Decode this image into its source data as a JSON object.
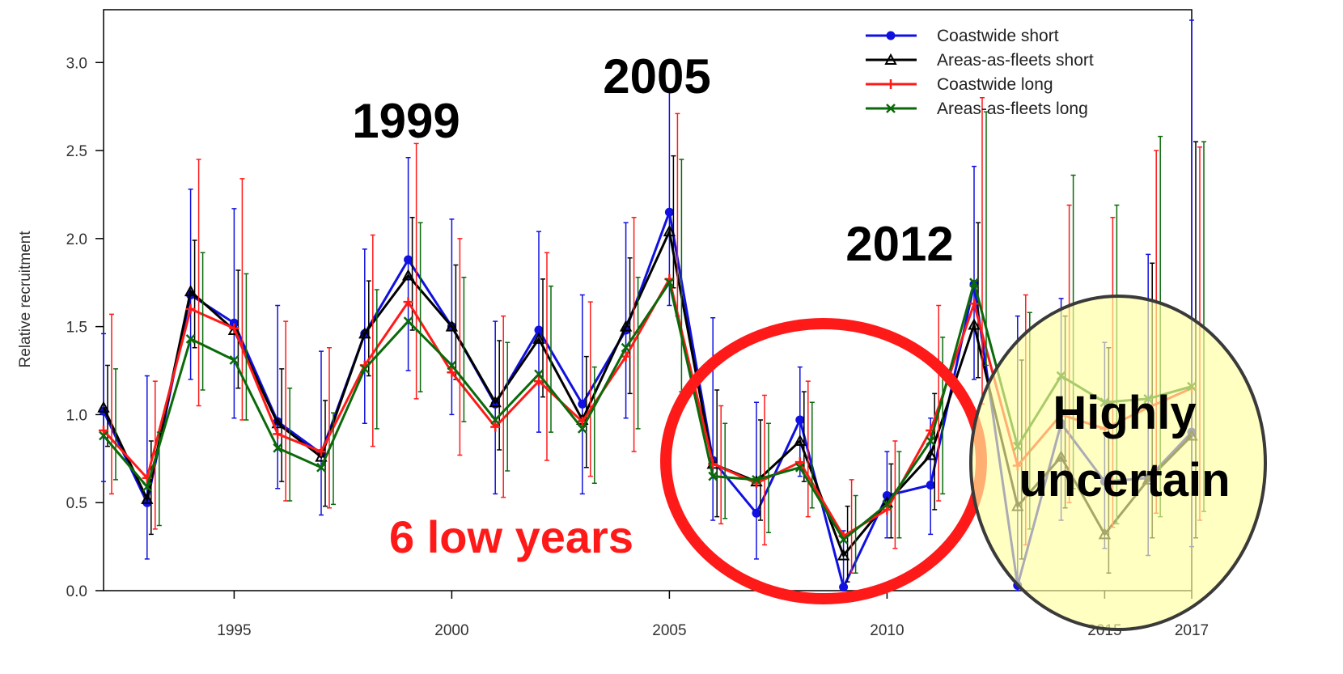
{
  "chart_data": {
    "type": "line",
    "title": "",
    "xlabel": "",
    "ylabel": "Relative recruitment",
    "xlim": [
      1992,
      2017
    ],
    "ylim": [
      0,
      3.3
    ],
    "x_ticks": [
      1995,
      2000,
      2005,
      2010,
      2015,
      2017
    ],
    "y_ticks": [
      "0.0",
      "0.5",
      "1.0",
      "1.5",
      "2.0",
      "2.5",
      "3.0"
    ],
    "y_tick_values": [
      0,
      0.5,
      1.0,
      1.5,
      2.0,
      2.5,
      3.0
    ],
    "legend_position": "top-right",
    "colors": {
      "blue": "#1010e0",
      "black": "#000000",
      "red": "#ff1a1a",
      "green": "#0a6a0a"
    },
    "x": [
      1992,
      1993,
      1994,
      1995,
      1996,
      1997,
      1998,
      1999,
      2000,
      2001,
      2002,
      2003,
      2004,
      2005,
      2006,
      2007,
      2008,
      2009,
      2010,
      2011,
      2012,
      2013,
      2014,
      2015,
      2016,
      2017
    ],
    "series": [
      {
        "name": "Coastwide short",
        "color": "#1010e0",
        "marker": "circle",
        "values": [
          1.02,
          0.5,
          1.68,
          1.52,
          0.96,
          0.78,
          1.46,
          1.88,
          1.5,
          1.06,
          1.48,
          1.06,
          1.48,
          2.15,
          0.74,
          0.44,
          0.97,
          0.02,
          0.54,
          0.6,
          1.74,
          0.03,
          0.95,
          0.62,
          0.64,
          0.9
        ],
        "lower": [
          0.62,
          0.18,
          1.2,
          0.98,
          0.58,
          0.43,
          0.95,
          1.25,
          1.0,
          0.55,
          0.9,
          0.55,
          0.98,
          1.62,
          0.4,
          0.18,
          0.65,
          0.0,
          0.3,
          0.32,
          1.2,
          0.0,
          0.4,
          0.24,
          0.2,
          0.25
        ],
        "upper": [
          1.46,
          1.22,
          2.28,
          2.17,
          1.62,
          1.36,
          1.94,
          2.46,
          2.11,
          1.53,
          2.04,
          1.68,
          2.09,
          2.85,
          1.55,
          1.07,
          1.27,
          0.34,
          0.79,
          0.98,
          2.41,
          1.56,
          1.66,
          1.41,
          1.91,
          3.24
        ]
      },
      {
        "name": "Areas-as-fleets short",
        "color": "#000000",
        "marker": "triangle",
        "values": [
          1.04,
          0.52,
          1.7,
          1.48,
          0.95,
          0.76,
          1.46,
          1.79,
          1.5,
          1.07,
          1.43,
          0.97,
          1.5,
          2.04,
          0.72,
          0.62,
          0.85,
          0.2,
          0.5,
          0.77,
          1.51,
          0.48,
          0.76,
          0.32,
          0.63,
          0.88
        ],
        "lower": [
          0.82,
          0.32,
          1.38,
          1.15,
          0.62,
          0.48,
          1.22,
          1.48,
          1.2,
          0.8,
          1.1,
          0.7,
          1.12,
          1.72,
          0.42,
          0.4,
          0.62,
          0.05,
          0.3,
          0.46,
          1.21,
          0.18,
          0.47,
          0.1,
          0.3,
          0.3
        ],
        "upper": [
          1.28,
          0.85,
          1.99,
          1.82,
          1.26,
          1.08,
          1.76,
          2.12,
          1.85,
          1.42,
          1.77,
          1.33,
          1.89,
          2.47,
          1.14,
          0.97,
          1.13,
          0.48,
          0.72,
          1.12,
          2.09,
          1.31,
          1.56,
          1.38,
          1.86,
          2.55
        ]
      },
      {
        "name": "Coastwide long",
        "color": "#ff1a1a",
        "marker": "plus",
        "values": [
          0.91,
          0.64,
          1.6,
          1.49,
          0.89,
          0.79,
          1.28,
          1.64,
          1.24,
          0.93,
          1.19,
          0.96,
          1.33,
          1.77,
          0.72,
          0.61,
          0.73,
          0.31,
          0.46,
          0.91,
          1.63,
          0.71,
          1.0,
          0.92,
          1.04,
          1.15
        ],
        "lower": [
          0.55,
          0.35,
          1.05,
          0.97,
          0.51,
          0.47,
          0.82,
          1.09,
          0.77,
          0.53,
          0.74,
          0.65,
          0.79,
          1.56,
          0.38,
          0.26,
          0.42,
          0.1,
          0.24,
          0.51,
          1.06,
          0.26,
          0.5,
          0.36,
          0.44,
          0.4
        ],
        "upper": [
          1.57,
          1.19,
          2.45,
          2.34,
          1.53,
          1.38,
          2.02,
          2.54,
          2.0,
          1.56,
          1.92,
          1.64,
          2.12,
          2.71,
          1.05,
          1.11,
          1.19,
          0.63,
          0.85,
          1.62,
          2.8,
          1.68,
          2.19,
          2.12,
          2.5,
          2.52
        ]
      },
      {
        "name": "Areas-as-fleets long",
        "color": "#0a6a0a",
        "marker": "x",
        "values": [
          0.88,
          0.59,
          1.43,
          1.31,
          0.81,
          0.7,
          1.26,
          1.53,
          1.28,
          0.97,
          1.23,
          0.92,
          1.38,
          1.75,
          0.65,
          0.63,
          0.7,
          0.29,
          0.49,
          0.85,
          1.75,
          0.82,
          1.22,
          1.07,
          1.09,
          1.16
        ],
        "lower": [
          0.63,
          0.37,
          1.14,
          0.97,
          0.51,
          0.49,
          0.92,
          1.13,
          0.96,
          0.68,
          0.9,
          0.61,
          0.92,
          1.13,
          0.41,
          0.33,
          0.47,
          0.1,
          0.3,
          0.55,
          1.28,
          0.35,
          0.58,
          0.38,
          0.42,
          0.45
        ],
        "upper": [
          1.26,
          0.9,
          1.92,
          1.8,
          1.15,
          1.01,
          1.71,
          2.09,
          1.78,
          1.41,
          1.73,
          1.27,
          1.78,
          2.45,
          0.95,
          0.95,
          1.07,
          0.54,
          0.79,
          1.44,
          2.72,
          1.58,
          2.36,
          2.19,
          2.58,
          2.55
        ]
      }
    ],
    "annotations": [
      "1999",
      "2005",
      "2012",
      "6 low years",
      "Highly",
      "uncertain"
    ]
  }
}
